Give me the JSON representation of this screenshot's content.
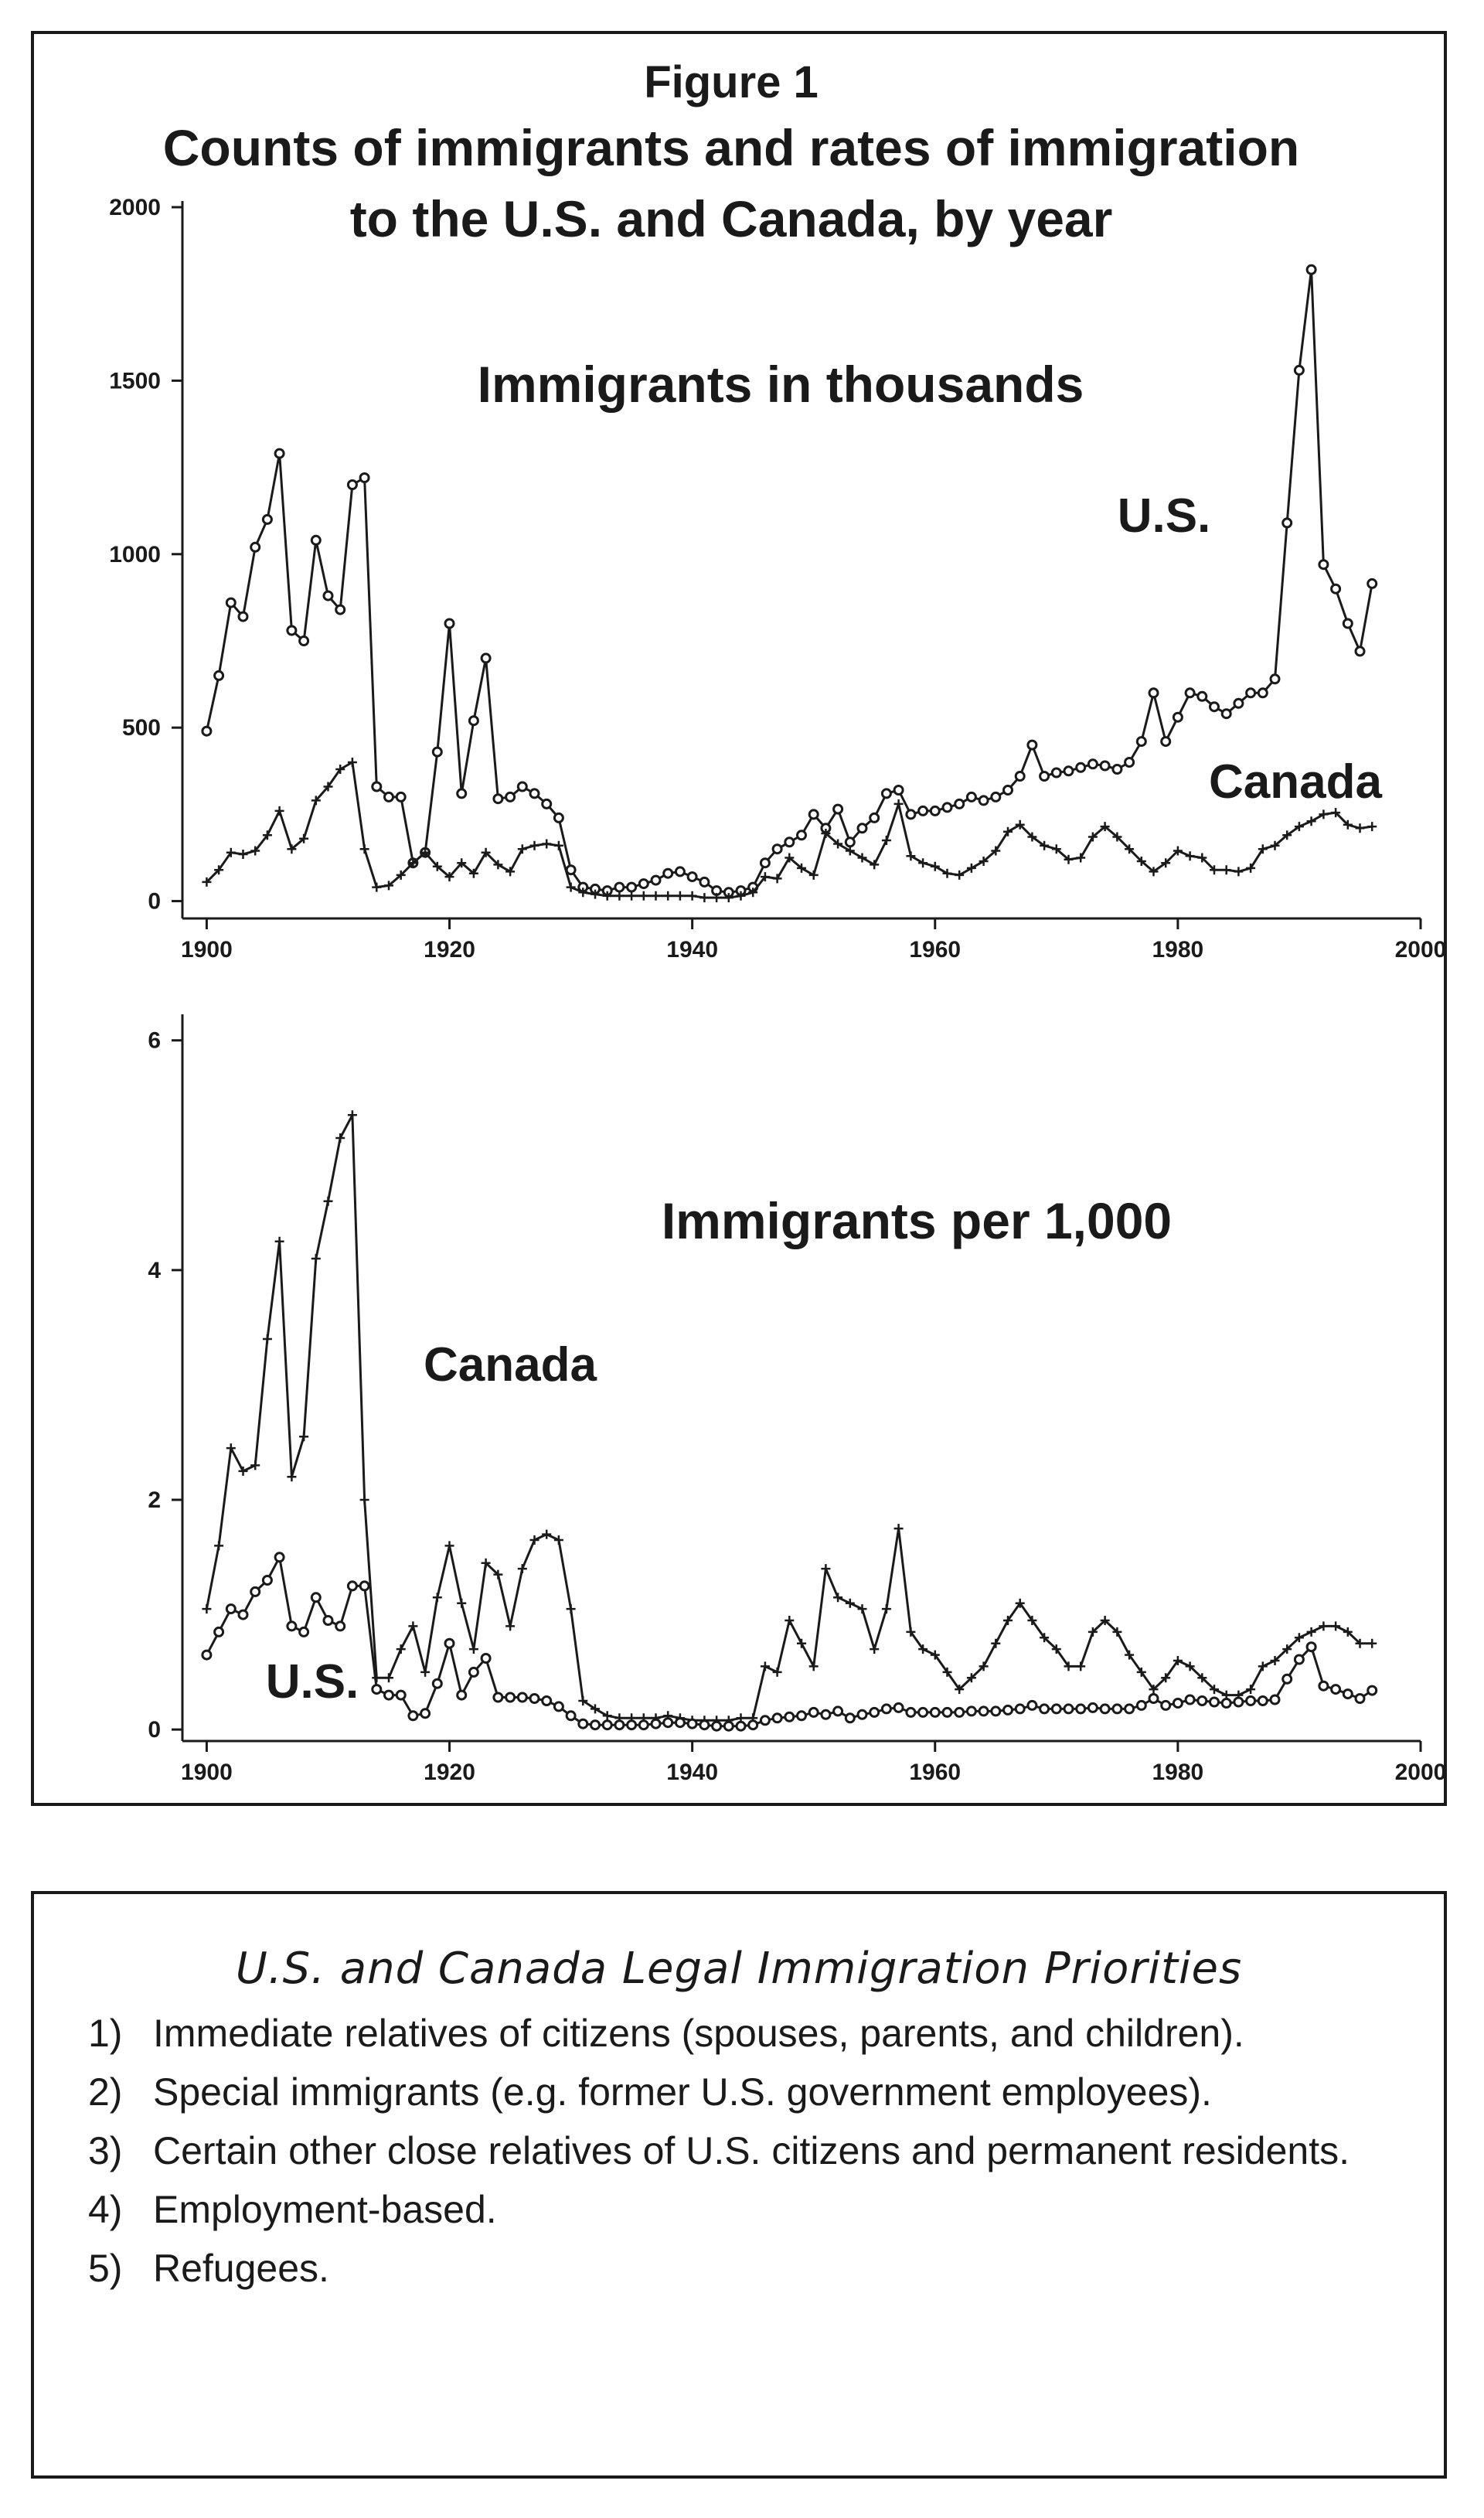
{
  "chart_data": [
    {
      "type": "line",
      "title": "Figure 1",
      "subtitle": "Counts of immigrants and rates of immigration to the U.S. and Canada, by year",
      "panel_label": "Immigrants in thousands",
      "xlabel": "",
      "ylabel": "",
      "xlim": [
        1898,
        2000
      ],
      "ylim": [
        -50,
        2000
      ],
      "xticks": [
        1900,
        1920,
        1940,
        1960,
        1980,
        2000
      ],
      "yticks": [
        0,
        500,
        1000,
        1500,
        2000
      ],
      "grid": false,
      "series": [
        {
          "name": "U.S.",
          "marker": "circle",
          "x": [
            1900,
            1901,
            1902,
            1903,
            1904,
            1905,
            1906,
            1907,
            1908,
            1909,
            1910,
            1911,
            1912,
            1913,
            1914,
            1915,
            1916,
            1917,
            1918,
            1919,
            1920,
            1921,
            1922,
            1923,
            1924,
            1925,
            1926,
            1927,
            1928,
            1929,
            1930,
            1931,
            1932,
            1933,
            1934,
            1935,
            1936,
            1937,
            1938,
            1939,
            1940,
            1941,
            1942,
            1943,
            1944,
            1945,
            1946,
            1947,
            1948,
            1949,
            1950,
            1951,
            1952,
            1953,
            1954,
            1955,
            1956,
            1957,
            1958,
            1959,
            1960,
            1961,
            1962,
            1963,
            1964,
            1965,
            1966,
            1967,
            1968,
            1969,
            1970,
            1971,
            1972,
            1973,
            1974,
            1975,
            1976,
            1977,
            1978,
            1979,
            1980,
            1981,
            1982,
            1983,
            1984,
            1985,
            1986,
            1987,
            1988,
            1989,
            1990,
            1991,
            1992,
            1993,
            1994,
            1995,
            1996
          ],
          "values": [
            490,
            650,
            860,
            820,
            1020,
            1100,
            1290,
            780,
            750,
            1040,
            880,
            840,
            1200,
            1220,
            330,
            300,
            300,
            110,
            140,
            430,
            800,
            310,
            520,
            700,
            295,
            300,
            330,
            310,
            280,
            240,
            90,
            40,
            35,
            30,
            40,
            40,
            50,
            60,
            80,
            85,
            70,
            55,
            30,
            25,
            30,
            40,
            110,
            150,
            170,
            190,
            250,
            210,
            265,
            170,
            210,
            240,
            310,
            320,
            250,
            260,
            260,
            270,
            280,
            300,
            290,
            300,
            320,
            360,
            450,
            360,
            370,
            375,
            385,
            395,
            390,
            380,
            400,
            460,
            600,
            460,
            530,
            600,
            590,
            560,
            540,
            570,
            600,
            600,
            640,
            1090,
            1530,
            1820,
            970,
            900,
            800,
            720,
            915
          ]
        },
        {
          "name": "Canada",
          "marker": "cross",
          "x": [
            1900,
            1901,
            1902,
            1903,
            1904,
            1905,
            1906,
            1907,
            1908,
            1909,
            1910,
            1911,
            1912,
            1913,
            1914,
            1915,
            1916,
            1917,
            1918,
            1919,
            1920,
            1921,
            1922,
            1923,
            1924,
            1925,
            1926,
            1927,
            1928,
            1929,
            1930,
            1931,
            1932,
            1933,
            1934,
            1935,
            1936,
            1937,
            1938,
            1939,
            1940,
            1941,
            1942,
            1943,
            1944,
            1945,
            1946,
            1947,
            1948,
            1949,
            1950,
            1951,
            1952,
            1953,
            1954,
            1955,
            1956,
            1957,
            1958,
            1959,
            1960,
            1961,
            1962,
            1963,
            1964,
            1965,
            1966,
            1967,
            1968,
            1969,
            1970,
            1971,
            1972,
            1973,
            1974,
            1975,
            1976,
            1977,
            1978,
            1979,
            1980,
            1981,
            1982,
            1983,
            1984,
            1985,
            1986,
            1987,
            1988,
            1989,
            1990,
            1991,
            1992,
            1993,
            1994,
            1995,
            1996
          ],
          "values": [
            55,
            90,
            140,
            135,
            145,
            190,
            260,
            150,
            180,
            290,
            330,
            380,
            400,
            150,
            40,
            45,
            75,
            110,
            140,
            100,
            70,
            110,
            80,
            140,
            105,
            85,
            150,
            160,
            165,
            160,
            40,
            25,
            20,
            15,
            15,
            15,
            15,
            15,
            15,
            15,
            15,
            10,
            10,
            10,
            15,
            25,
            70,
            65,
            125,
            95,
            75,
            195,
            165,
            145,
            125,
            105,
            175,
            280,
            130,
            110,
            100,
            80,
            75,
            95,
            115,
            145,
            200,
            220,
            185,
            160,
            150,
            120,
            125,
            185,
            215,
            185,
            150,
            115,
            85,
            110,
            145,
            130,
            125,
            90,
            90,
            85,
            95,
            150,
            160,
            190,
            215,
            230,
            250,
            255,
            220,
            210,
            215
          ]
        }
      ]
    },
    {
      "type": "line",
      "panel_label": "Immigrants per 1,000",
      "xlabel": "",
      "ylabel": "",
      "xlim": [
        1898,
        2000
      ],
      "ylim": [
        -0.1,
        6.2
      ],
      "xticks": [
        1900,
        1920,
        1940,
        1960,
        1980,
        2000
      ],
      "yticks": [
        0,
        2,
        4,
        6
      ],
      "grid": false,
      "series": [
        {
          "name": "Canada",
          "marker": "cross",
          "x": [
            1900,
            1901,
            1902,
            1903,
            1904,
            1905,
            1906,
            1907,
            1908,
            1909,
            1910,
            1911,
            1912,
            1913,
            1914,
            1915,
            1916,
            1917,
            1918,
            1919,
            1920,
            1921,
            1922,
            1923,
            1924,
            1925,
            1926,
            1927,
            1928,
            1929,
            1930,
            1931,
            1932,
            1933,
            1934,
            1935,
            1936,
            1937,
            1938,
            1939,
            1940,
            1941,
            1942,
            1943,
            1944,
            1945,
            1946,
            1947,
            1948,
            1949,
            1950,
            1951,
            1952,
            1953,
            1954,
            1955,
            1956,
            1957,
            1958,
            1959,
            1960,
            1961,
            1962,
            1963,
            1964,
            1965,
            1966,
            1967,
            1968,
            1969,
            1970,
            1971,
            1972,
            1973,
            1974,
            1975,
            1976,
            1977,
            1978,
            1979,
            1980,
            1981,
            1982,
            1983,
            1984,
            1985,
            1986,
            1987,
            1988,
            1989,
            1990,
            1991,
            1992,
            1993,
            1994,
            1995,
            1996
          ],
          "values": [
            1.05,
            1.6,
            2.45,
            2.25,
            2.3,
            3.4,
            4.25,
            2.2,
            2.55,
            4.1,
            4.6,
            5.15,
            5.35,
            2.0,
            0.45,
            0.45,
            0.7,
            0.9,
            0.5,
            1.15,
            1.6,
            1.1,
            0.7,
            1.45,
            1.35,
            0.9,
            1.4,
            1.65,
            1.7,
            1.65,
            1.05,
            0.25,
            0.18,
            0.12,
            0.1,
            0.1,
            0.1,
            0.1,
            0.12,
            0.1,
            0.08,
            0.08,
            0.08,
            0.08,
            0.1,
            0.1,
            0.55,
            0.5,
            0.95,
            0.75,
            0.55,
            1.4,
            1.15,
            1.1,
            1.05,
            0.7,
            1.05,
            1.75,
            0.85,
            0.7,
            0.65,
            0.5,
            0.35,
            0.45,
            0.55,
            0.75,
            0.95,
            1.1,
            0.95,
            0.8,
            0.7,
            0.55,
            0.55,
            0.85,
            0.95,
            0.85,
            0.65,
            0.5,
            0.35,
            0.45,
            0.6,
            0.55,
            0.45,
            0.35,
            0.3,
            0.3,
            0.35,
            0.55,
            0.6,
            0.7,
            0.8,
            0.85,
            0.9,
            0.9,
            0.85,
            0.75,
            0.75
          ]
        },
        {
          "name": "U.S.",
          "marker": "circle",
          "x": [
            1900,
            1901,
            1902,
            1903,
            1904,
            1905,
            1906,
            1907,
            1908,
            1909,
            1910,
            1911,
            1912,
            1913,
            1914,
            1915,
            1916,
            1917,
            1918,
            1919,
            1920,
            1921,
            1922,
            1923,
            1924,
            1925,
            1926,
            1927,
            1928,
            1929,
            1930,
            1931,
            1932,
            1933,
            1934,
            1935,
            1936,
            1937,
            1938,
            1939,
            1940,
            1941,
            1942,
            1943,
            1944,
            1945,
            1946,
            1947,
            1948,
            1949,
            1950,
            1951,
            1952,
            1953,
            1954,
            1955,
            1956,
            1957,
            1958,
            1959,
            1960,
            1961,
            1962,
            1963,
            1964,
            1965,
            1966,
            1967,
            1968,
            1969,
            1970,
            1971,
            1972,
            1973,
            1974,
            1975,
            1976,
            1977,
            1978,
            1979,
            1980,
            1981,
            1982,
            1983,
            1984,
            1985,
            1986,
            1987,
            1988,
            1989,
            1990,
            1991,
            1992,
            1993,
            1994,
            1995,
            1996
          ],
          "values": [
            0.65,
            0.85,
            1.05,
            1.0,
            1.2,
            1.3,
            1.5,
            0.9,
            0.85,
            1.15,
            0.95,
            0.9,
            1.25,
            1.25,
            0.35,
            0.3,
            0.3,
            0.12,
            0.14,
            0.4,
            0.75,
            0.3,
            0.5,
            0.62,
            0.28,
            0.28,
            0.28,
            0.27,
            0.25,
            0.2,
            0.12,
            0.05,
            0.04,
            0.04,
            0.04,
            0.04,
            0.04,
            0.05,
            0.06,
            0.06,
            0.05,
            0.04,
            0.03,
            0.03,
            0.03,
            0.04,
            0.08,
            0.1,
            0.11,
            0.12,
            0.15,
            0.13,
            0.16,
            0.1,
            0.13,
            0.15,
            0.18,
            0.19,
            0.15,
            0.15,
            0.15,
            0.15,
            0.15,
            0.16,
            0.16,
            0.16,
            0.17,
            0.18,
            0.21,
            0.18,
            0.18,
            0.18,
            0.18,
            0.19,
            0.18,
            0.18,
            0.18,
            0.21,
            0.27,
            0.21,
            0.23,
            0.26,
            0.25,
            0.24,
            0.23,
            0.24,
            0.25,
            0.25,
            0.26,
            0.44,
            0.61,
            0.72,
            0.38,
            0.35,
            0.31,
            0.27,
            0.34
          ]
        }
      ]
    }
  ],
  "figure": {
    "title_line1": "Figure 1",
    "title_line2": "Counts of immigrants and rates of immigration",
    "title_line3": "to the U.S. and Canada, by year",
    "panel1": {
      "label": "Immigrants in thousands",
      "us_label": "U.S.",
      "canada_label": "Canada"
    },
    "panel2": {
      "label": "Immigrants per 1,000",
      "canada_label": "Canada",
      "us_label": "U.S."
    }
  },
  "priorities": {
    "title": "U.S. and Canada Legal Immigration Priorities",
    "items": [
      {
        "num": "1)",
        "text": "Immediate relatives of citizens (spouses, parents, and children)."
      },
      {
        "num": "2)",
        "text": "Special immigrants (e.g. former U.S. government employees)."
      },
      {
        "num": "3)",
        "text": "Certain other close relatives of U.S. citizens and perma­nent residents."
      },
      {
        "num": "4)",
        "text": "Employment-based."
      },
      {
        "num": "5)",
        "text": "Refugees."
      }
    ]
  },
  "colors": {
    "ink": "#1a1a1a",
    "background": "#ffffff"
  }
}
